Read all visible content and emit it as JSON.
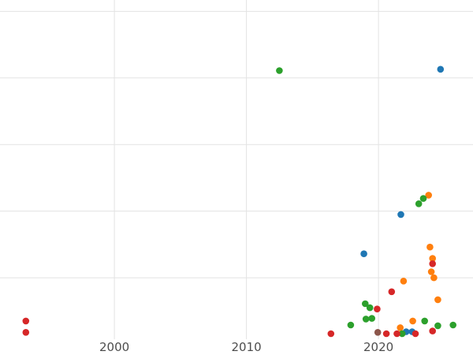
{
  "chart_data": {
    "type": "scatter",
    "title": "",
    "xlabel": "",
    "ylabel": "",
    "x_ticks": [
      2000,
      2010,
      2020
    ],
    "x_tick_labels": [
      "2000",
      "2010",
      "2020"
    ],
    "xlim": [
      1991.34,
      2027.16
    ],
    "ylim": [
      -0.16,
      5.17
    ],
    "y_gridlines": [
      1,
      2,
      3,
      4,
      5
    ],
    "grid": true,
    "legend": "none",
    "marker_radius": 4.3,
    "colors": {
      "background": "#ffffff",
      "grid": "#e3e3e3",
      "tick_label": "#4d4d4d",
      "blue": "#1f77b4",
      "orange": "#ff7f0e",
      "green": "#2ca02c",
      "red": "#d62728",
      "brown": "#8c564b"
    },
    "series": [
      {
        "name": "blue",
        "color": "#1f77b4",
        "points": [
          {
            "x": 2024.7,
            "y": 4.13
          },
          {
            "x": 2021.7,
            "y": 1.95
          },
          {
            "x": 2018.9,
            "y": 1.36
          },
          {
            "x": 2022.1,
            "y": 0.19
          },
          {
            "x": 2022.55,
            "y": 0.19
          }
        ]
      },
      {
        "name": "orange",
        "color": "#ff7f0e",
        "points": [
          {
            "x": 2023.8,
            "y": 2.24
          },
          {
            "x": 2023.9,
            "y": 1.46
          },
          {
            "x": 2024.1,
            "y": 1.29
          },
          {
            "x": 2024.0,
            "y": 1.09
          },
          {
            "x": 2024.2,
            "y": 1.0
          },
          {
            "x": 2021.9,
            "y": 0.95
          },
          {
            "x": 2024.5,
            "y": 0.67
          },
          {
            "x": 2021.65,
            "y": 0.25
          },
          {
            "x": 2022.6,
            "y": 0.35
          }
        ]
      },
      {
        "name": "green",
        "color": "#2ca02c",
        "points": [
          {
            "x": 2012.5,
            "y": 4.11
          },
          {
            "x": 2023.05,
            "y": 2.11
          },
          {
            "x": 2023.4,
            "y": 2.19
          },
          {
            "x": 2019.0,
            "y": 0.61
          },
          {
            "x": 2019.35,
            "y": 0.55
          },
          {
            "x": 2017.9,
            "y": 0.29
          },
          {
            "x": 2019.05,
            "y": 0.38
          },
          {
            "x": 2019.5,
            "y": 0.39
          },
          {
            "x": 2021.8,
            "y": 0.16
          },
          {
            "x": 2023.5,
            "y": 0.35
          },
          {
            "x": 2024.5,
            "y": 0.28
          },
          {
            "x": 2025.65,
            "y": 0.29
          }
        ]
      },
      {
        "name": "red",
        "color": "#d62728",
        "points": [
          {
            "x": 1993.3,
            "y": 0.35
          },
          {
            "x": 1993.3,
            "y": 0.18
          },
          {
            "x": 2024.1,
            "y": 1.21
          },
          {
            "x": 2021.0,
            "y": 0.79
          },
          {
            "x": 2019.9,
            "y": 0.53
          },
          {
            "x": 2016.4,
            "y": 0.16
          },
          {
            "x": 2020.6,
            "y": 0.16
          },
          {
            "x": 2021.4,
            "y": 0.16
          },
          {
            "x": 2022.8,
            "y": 0.16
          },
          {
            "x": 2024.1,
            "y": 0.2
          }
        ]
      },
      {
        "name": "brown",
        "color": "#8c564b",
        "points": [
          {
            "x": 2019.95,
            "y": 0.18
          }
        ]
      }
    ]
  }
}
